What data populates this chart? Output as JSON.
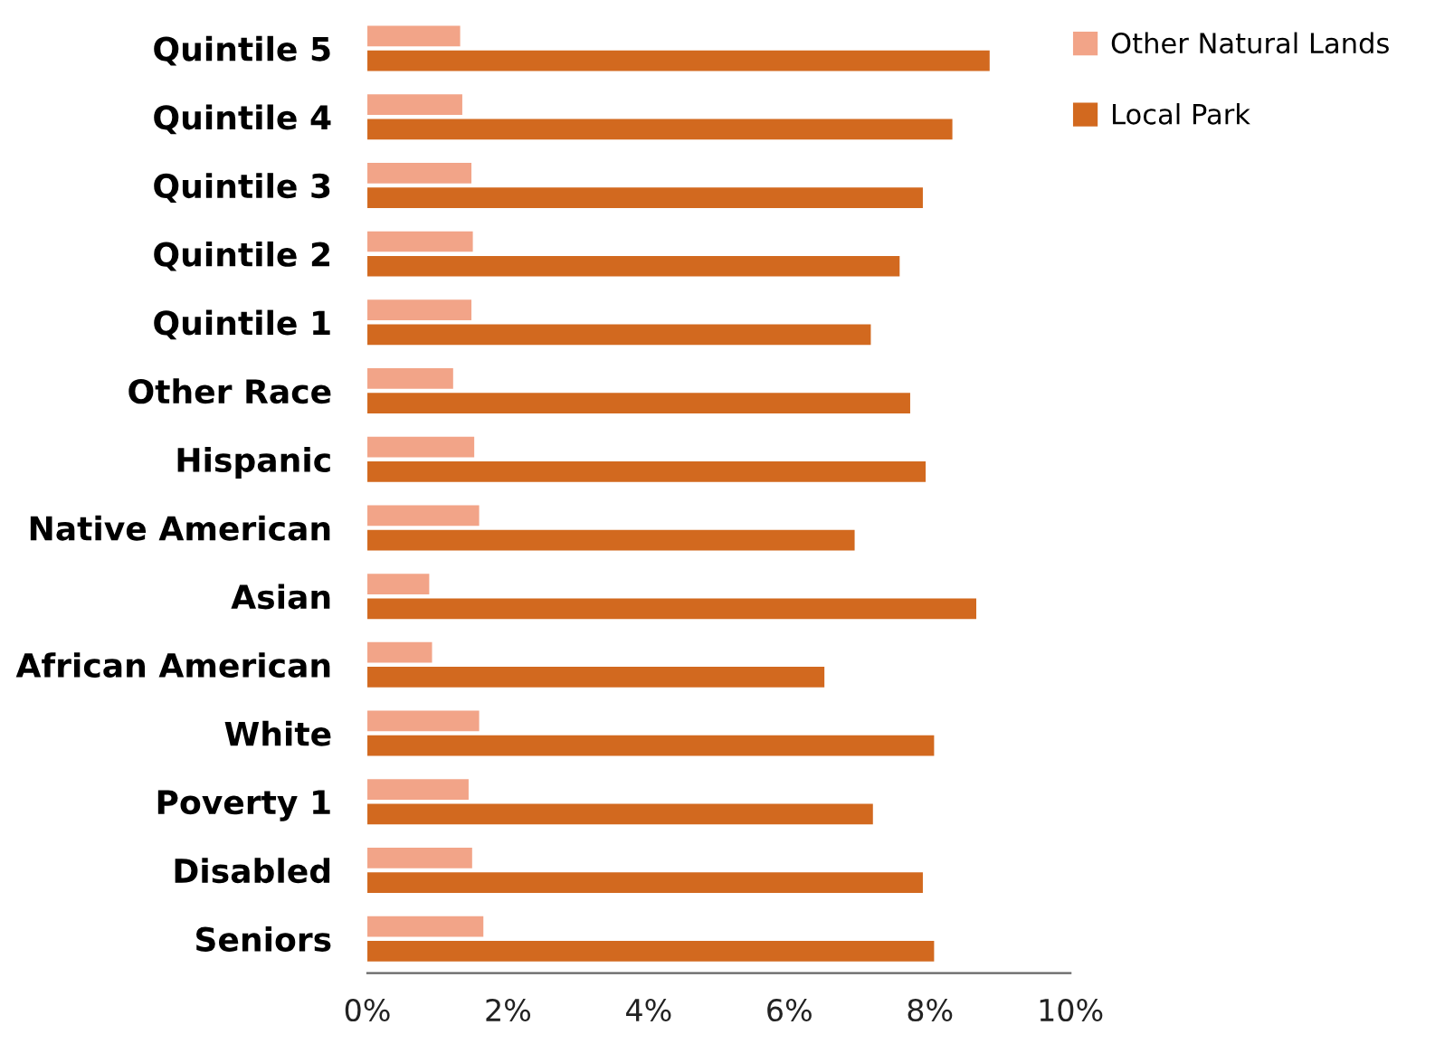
{
  "chart_data": {
    "type": "bar",
    "orientation": "horizontal",
    "categories": [
      "Quintile 5",
      "Quintile 4",
      "Quintile 3",
      "Quintile 2",
      "Quintile 1",
      "Other Race",
      "Hispanic",
      "Native American",
      "Asian",
      "African American",
      "White",
      "Poverty 1",
      "Disabled",
      "Seniors"
    ],
    "series": [
      {
        "name": "Other Natural Lands",
        "color": "#f2a488",
        "values": [
          1.32,
          1.35,
          1.48,
          1.5,
          1.48,
          1.22,
          1.52,
          1.59,
          0.88,
          0.92,
          1.59,
          1.44,
          1.49,
          1.65
        ]
      },
      {
        "name": "Local Park",
        "color": "#d2691f",
        "values": [
          8.85,
          8.32,
          7.9,
          7.57,
          7.16,
          7.72,
          7.94,
          6.93,
          8.66,
          6.5,
          8.06,
          7.19,
          7.9,
          8.06
        ]
      }
    ],
    "xlim": [
      0,
      10
    ],
    "xticks": [
      {
        "value": 0,
        "label": "0%"
      },
      {
        "value": 2,
        "label": "2%"
      },
      {
        "value": 4,
        "label": "4%"
      },
      {
        "value": 6,
        "label": "6%"
      },
      {
        "value": 8,
        "label": "8%"
      },
      {
        "value": 10,
        "label": "10%"
      }
    ],
    "legend": "top right",
    "grid": false
  }
}
